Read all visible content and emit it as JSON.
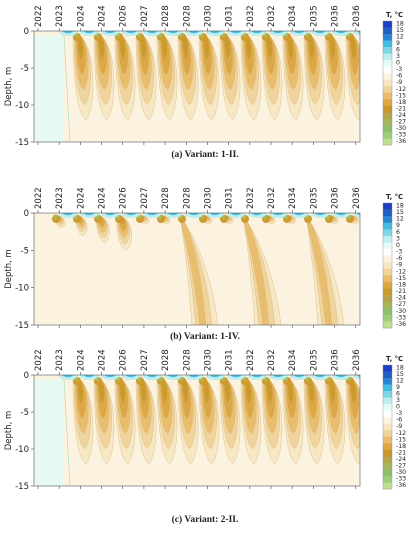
{
  "figure": {
    "captions": [
      "(a) Variant: 1-II.",
      "(b) Variant: 1-IV.",
      "(c) Variant: 2-II."
    ]
  },
  "colors": {
    "plot_background": "#fbf3df",
    "warm_scale": [
      "#ffffff",
      "#e9fbf9",
      "#bdeef0",
      "#7fd7e6",
      "#44bde0",
      "#1f95d6",
      "#1f5fc4"
    ],
    "cold_scale": [
      "#fbf3df",
      "#f6e6c3",
      "#efd39b",
      "#e7bd6b",
      "#dba743",
      "#c89a2a",
      "#b8a24a",
      "#a8b45c",
      "#8fbf6a",
      "#9fce78",
      "#bfe08e",
      "#d8eba8"
    ],
    "thawed_zone": "#e6faf3"
  },
  "chart_data": [
    {
      "type": "heatmap",
      "variant": "1-II",
      "caption": "(a) Variant: 1-II.",
      "xlabel": "",
      "ylabel": "Depth, m",
      "x_tick_labels": [
        "2022",
        "2023",
        "2024",
        "2024",
        "2026",
        "2027",
        "2028",
        "2028",
        "2030",
        "2031",
        "2032",
        "2032",
        "2034",
        "2035",
        "2036",
        "2036"
      ],
      "y_ticks": [
        0,
        -5,
        -10,
        -15
      ],
      "ylim": [
        -15,
        0
      ],
      "colorbar": {
        "title": "T, °C",
        "ticks": [
          18,
          15,
          12,
          9,
          6,
          3,
          0,
          -3,
          -6,
          -9,
          -12,
          -15,
          -18,
          -21,
          -24,
          -27,
          -30,
          -33,
          -36
        ]
      },
      "seasonal_freezing_fronts": [
        {
          "winter": 1,
          "max_depth_m": 0
        },
        {
          "winter": 2,
          "max_depth_m": -12
        },
        {
          "winter": 3,
          "max_depth_m": -12
        },
        {
          "winter": 4,
          "max_depth_m": -12
        },
        {
          "winter": 5,
          "max_depth_m": -12
        },
        {
          "winter": 6,
          "max_depth_m": -12
        },
        {
          "winter": 7,
          "max_depth_m": -12
        },
        {
          "winter": 8,
          "max_depth_m": -12
        },
        {
          "winter": 9,
          "max_depth_m": -12
        },
        {
          "winter": 10,
          "max_depth_m": -12
        },
        {
          "winter": 11,
          "max_depth_m": -12
        },
        {
          "winter": 12,
          "max_depth_m": -12
        },
        {
          "winter": 13,
          "max_depth_m": -12
        },
        {
          "winter": 14,
          "max_depth_m": -12
        },
        {
          "winter": 15,
          "max_depth_m": -12
        }
      ],
      "initial_thawed_zone": {
        "end_year": 2023,
        "depth_m": -15
      },
      "grid": false
    },
    {
      "type": "heatmap",
      "variant": "1-IV",
      "caption": "(b) Variant: 1-IV.",
      "xlabel": "",
      "ylabel": "Depth, m",
      "x_tick_labels": [
        "2022",
        "2023",
        "2024",
        "2024",
        "2026",
        "2027",
        "2028",
        "2028",
        "2030",
        "2031",
        "2032",
        "2032",
        "2034",
        "2035",
        "2036",
        "2036"
      ],
      "y_ticks": [
        0,
        -5,
        -10,
        -15
      ],
      "ylim": [
        -15,
        0
      ],
      "colorbar": {
        "title": "T, °C",
        "ticks": [
          18,
          15,
          12,
          9,
          6,
          3,
          0,
          -3,
          -6,
          -9,
          -12,
          -15,
          -18,
          -21,
          -24,
          -27,
          -30,
          -33,
          -36
        ]
      },
      "seasonal_freezing_fronts": [
        {
          "winter": 1,
          "max_depth_m": -2
        },
        {
          "winter": 2,
          "max_depth_m": -3
        },
        {
          "winter": 3,
          "max_depth_m": -4
        },
        {
          "winter": 4,
          "max_depth_m": -5
        },
        {
          "winter": 5,
          "max_depth_m": -1.5
        },
        {
          "winter": 6,
          "max_depth_m": -1.5
        },
        {
          "winter": 7,
          "max_depth_m": -15
        },
        {
          "winter": 8,
          "max_depth_m": -1.5
        },
        {
          "winter": 9,
          "max_depth_m": -1.5
        },
        {
          "winter": 10,
          "max_depth_m": -15
        },
        {
          "winter": 11,
          "max_depth_m": -1.5
        },
        {
          "winter": 12,
          "max_depth_m": -1.5
        },
        {
          "winter": 13,
          "max_depth_m": -15
        },
        {
          "winter": 14,
          "max_depth_m": -1.5
        },
        {
          "winter": 15,
          "max_depth_m": -1.5
        }
      ],
      "grid": false
    },
    {
      "type": "heatmap",
      "variant": "2-II",
      "caption": "(c) Variant: 2-II.",
      "xlabel": "",
      "ylabel": "Depth, m",
      "x_tick_labels": [
        "2022",
        "2023",
        "2024",
        "2024",
        "2026",
        "2027",
        "2028",
        "2028",
        "2030",
        "2031",
        "2032",
        "2032",
        "2034",
        "2035",
        "2036",
        "2036"
      ],
      "y_ticks": [
        0,
        -5,
        -10,
        -15
      ],
      "ylim": [
        -15,
        0
      ],
      "colorbar": {
        "title": "T, °C",
        "ticks": [
          18,
          15,
          12,
          9,
          6,
          3,
          0,
          -3,
          -6,
          -9,
          -12,
          -15,
          -18,
          -21,
          -24,
          -27,
          -30,
          -33,
          -36
        ]
      },
      "seasonal_freezing_fronts": [
        {
          "winter": 1,
          "max_depth_m": 0
        },
        {
          "winter": 2,
          "max_depth_m": -12
        },
        {
          "winter": 3,
          "max_depth_m": -12
        },
        {
          "winter": 4,
          "max_depth_m": -12
        },
        {
          "winter": 5,
          "max_depth_m": -12
        },
        {
          "winter": 6,
          "max_depth_m": -12
        },
        {
          "winter": 7,
          "max_depth_m": -12
        },
        {
          "winter": 8,
          "max_depth_m": -12
        },
        {
          "winter": 9,
          "max_depth_m": -12
        },
        {
          "winter": 10,
          "max_depth_m": -12
        },
        {
          "winter": 11,
          "max_depth_m": -12
        },
        {
          "winter": 12,
          "max_depth_m": -12
        },
        {
          "winter": 13,
          "max_depth_m": -12
        },
        {
          "winter": 14,
          "max_depth_m": -12
        },
        {
          "winter": 15,
          "max_depth_m": -12
        }
      ],
      "initial_thawed_zone": {
        "end_year": 2023,
        "depth_m": -15
      },
      "grid": false
    }
  ]
}
